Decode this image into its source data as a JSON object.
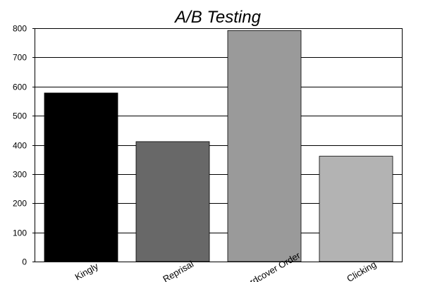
{
  "chart_data": {
    "type": "bar",
    "title": "A/B Testing",
    "xlabel": "",
    "ylabel": "",
    "categories": [
      "Kingly",
      "Reprisal",
      "Hardcover Order",
      "Clicking"
    ],
    "values": [
      578,
      411,
      792,
      361
    ],
    "colors": [
      "#000000",
      "#686868",
      "#9a9a9a",
      "#b3b3b3"
    ],
    "ylim": [
      0,
      800
    ],
    "yticks": [
      0,
      100,
      200,
      300,
      400,
      500,
      600,
      700,
      800
    ],
    "grid": true,
    "legend": "none"
  }
}
